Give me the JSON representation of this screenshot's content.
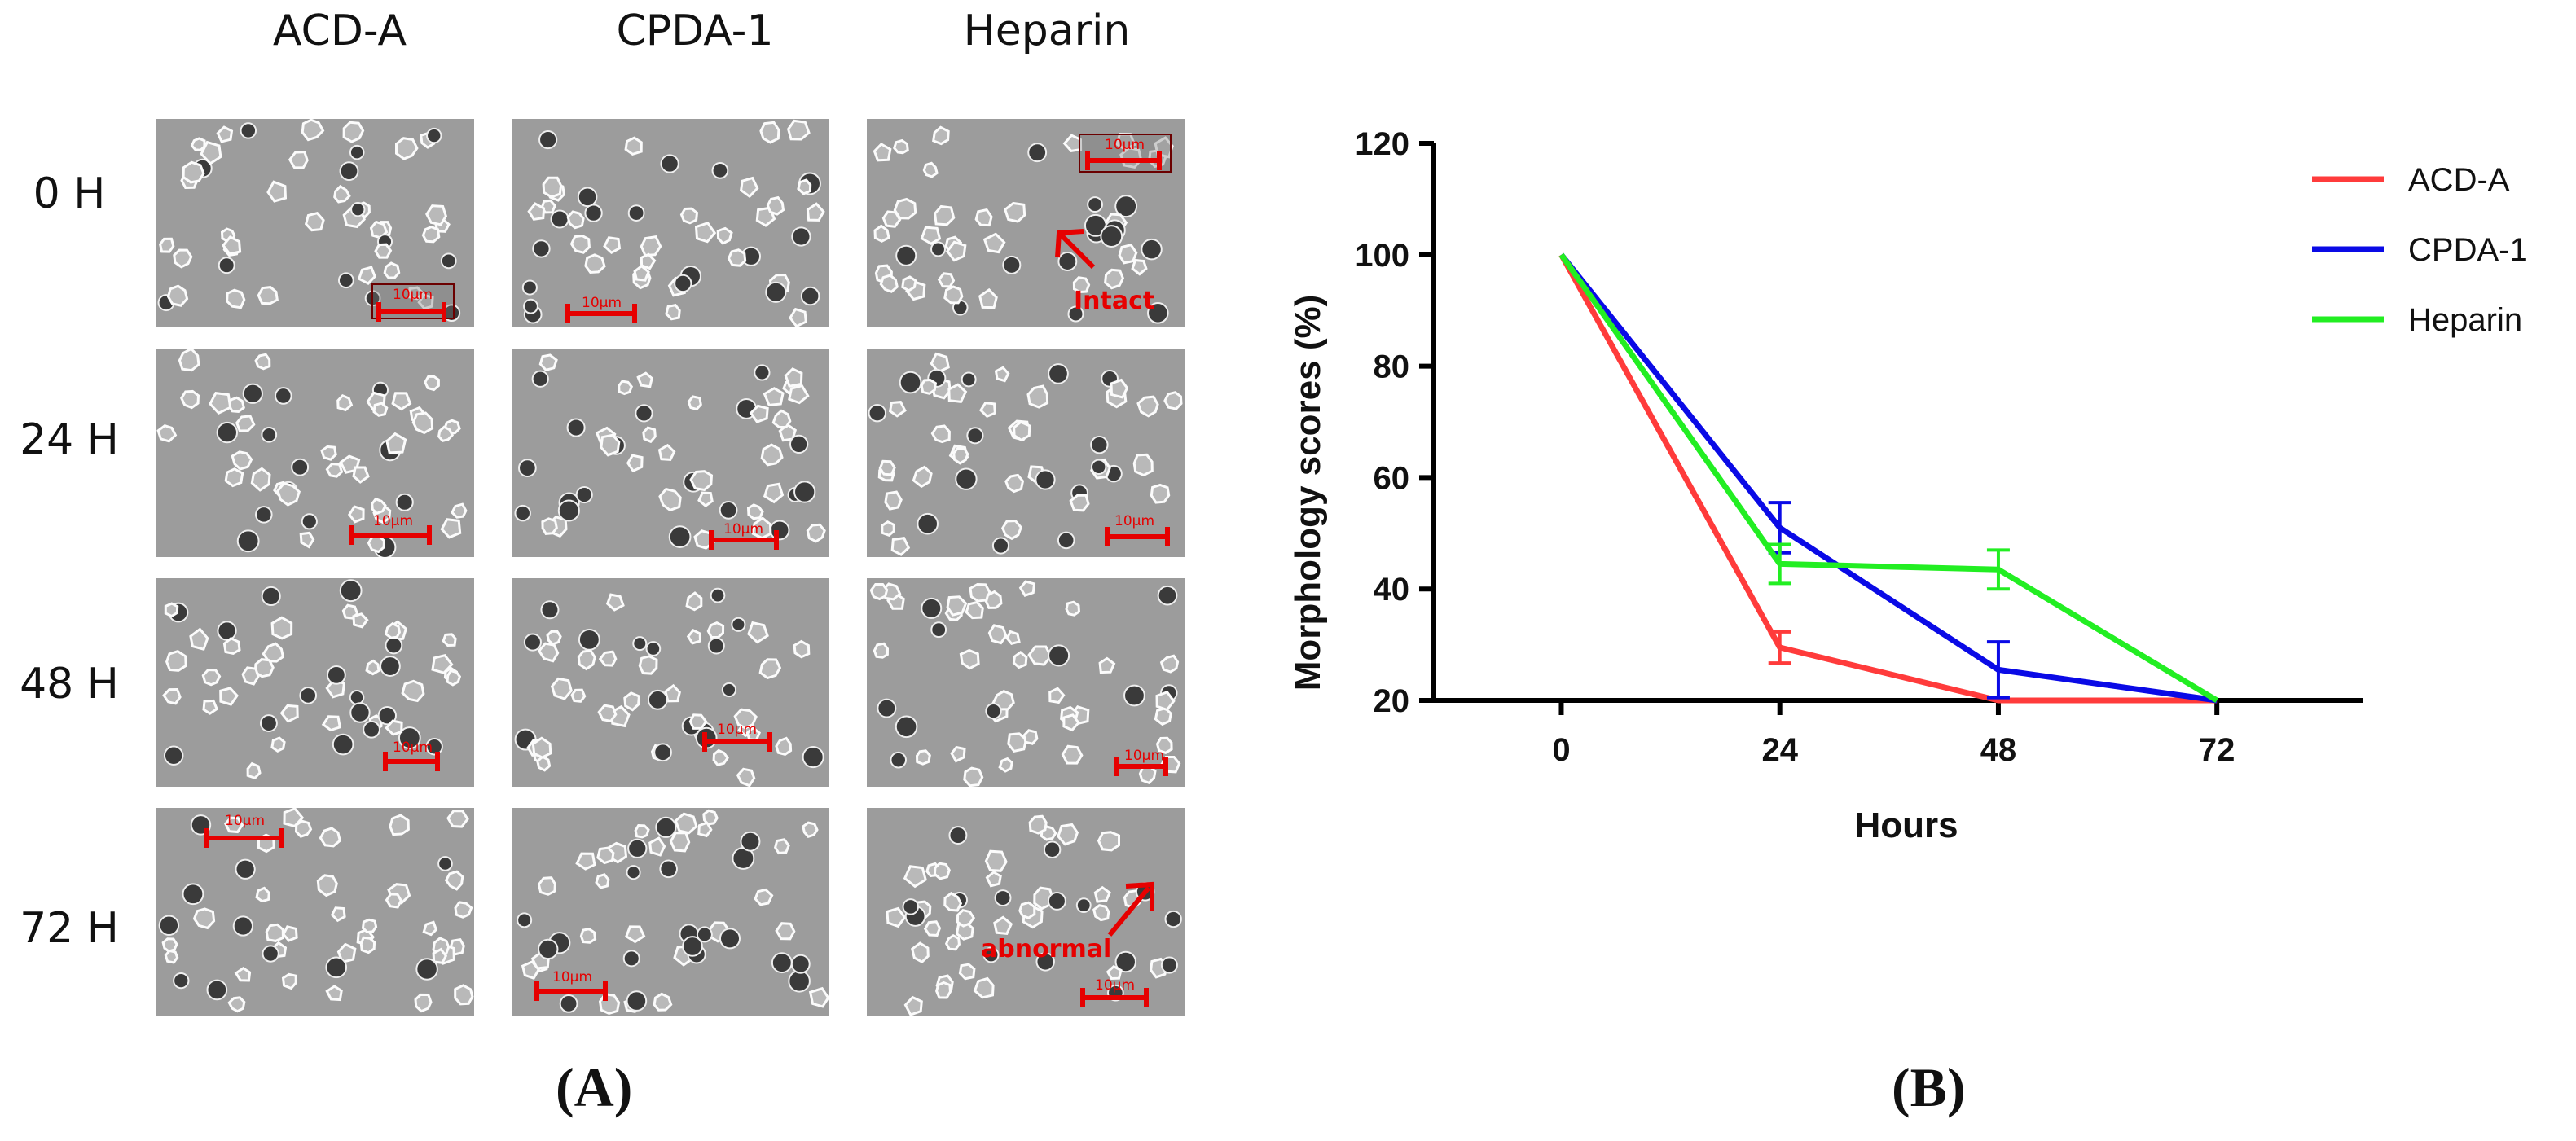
{
  "panel_a": {
    "columns": [
      "ACD-A",
      "CPDA-1",
      "Heparin"
    ],
    "rows": [
      "0  H",
      "24  H",
      "48  H",
      "72  H"
    ],
    "scale_bar_label": "10μm",
    "annotations": {
      "intact": "Intact",
      "abnormal": "abnormal"
    },
    "label": "(A)"
  },
  "panel_b": {
    "label": "(B)"
  },
  "chart_data": {
    "type": "line",
    "title": "",
    "xlabel": "Hours",
    "ylabel": "Morphology scores (%)",
    "x": [
      0,
      24,
      48,
      72
    ],
    "xticks": [
      "0",
      "24",
      "48",
      "72"
    ],
    "yticks": [
      "20",
      "40",
      "60",
      "80",
      "100",
      "120"
    ],
    "ylim": [
      20,
      120
    ],
    "xlim": [
      -14,
      88
    ],
    "legend_position": "top-right",
    "series": [
      {
        "name": "ACD-A",
        "color": "#ff3b3b",
        "values": [
          100,
          29.5,
          20,
          20
        ],
        "errors": [
          0,
          2.8,
          0,
          0
        ]
      },
      {
        "name": "CPDA-1",
        "color": "#0a0ae6",
        "values": [
          100,
          51,
          25.5,
          20
        ],
        "errors": [
          0,
          4.5,
          5,
          0
        ]
      },
      {
        "name": "Heparin",
        "color": "#22ee22",
        "values": [
          100,
          44.5,
          43.5,
          20
        ],
        "errors": [
          0,
          3.5,
          3.5,
          0
        ]
      }
    ]
  }
}
